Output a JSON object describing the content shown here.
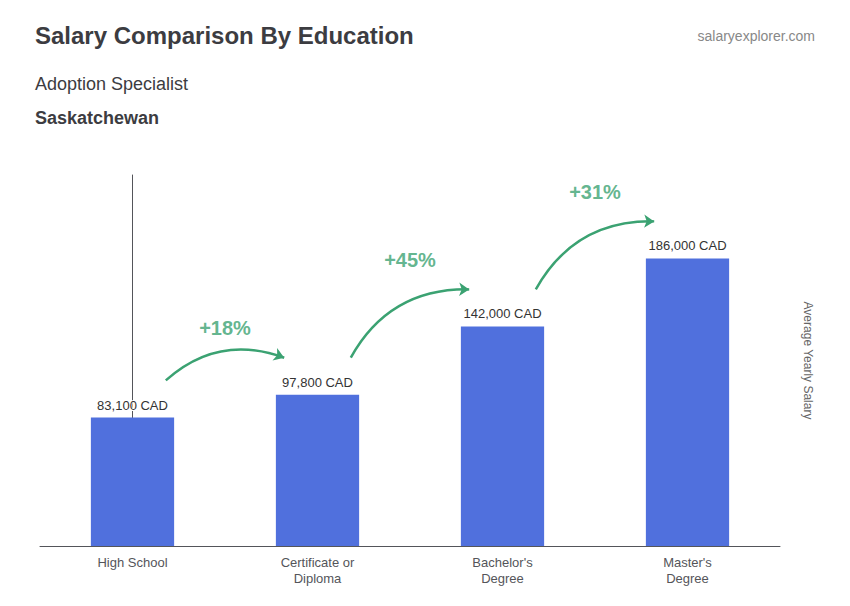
{
  "chart_data": {
    "type": "bar",
    "title": "Salary Comparison By Education",
    "subtitle": [
      "Adoption Specialist",
      "Saskatchewan"
    ],
    "watermark": "salaryexplorer.com",
    "ylabel": "Average Yearly Salary",
    "categories": [
      "High School",
      "Certificate or\nDiploma",
      "Bachelor's\nDegree",
      "Master's\nDegree"
    ],
    "values": [
      83100,
      97800,
      142000,
      186000
    ],
    "value_labels": [
      "83,100 CAD",
      "97,800 CAD",
      "142,000 CAD",
      "186,000 CAD"
    ],
    "data_labels": true,
    "annotations": [
      "+18%",
      "+45%",
      "+31%"
    ],
    "ylim": [
      0,
      240000
    ],
    "tick_labels": "x",
    "grid": false
  }
}
